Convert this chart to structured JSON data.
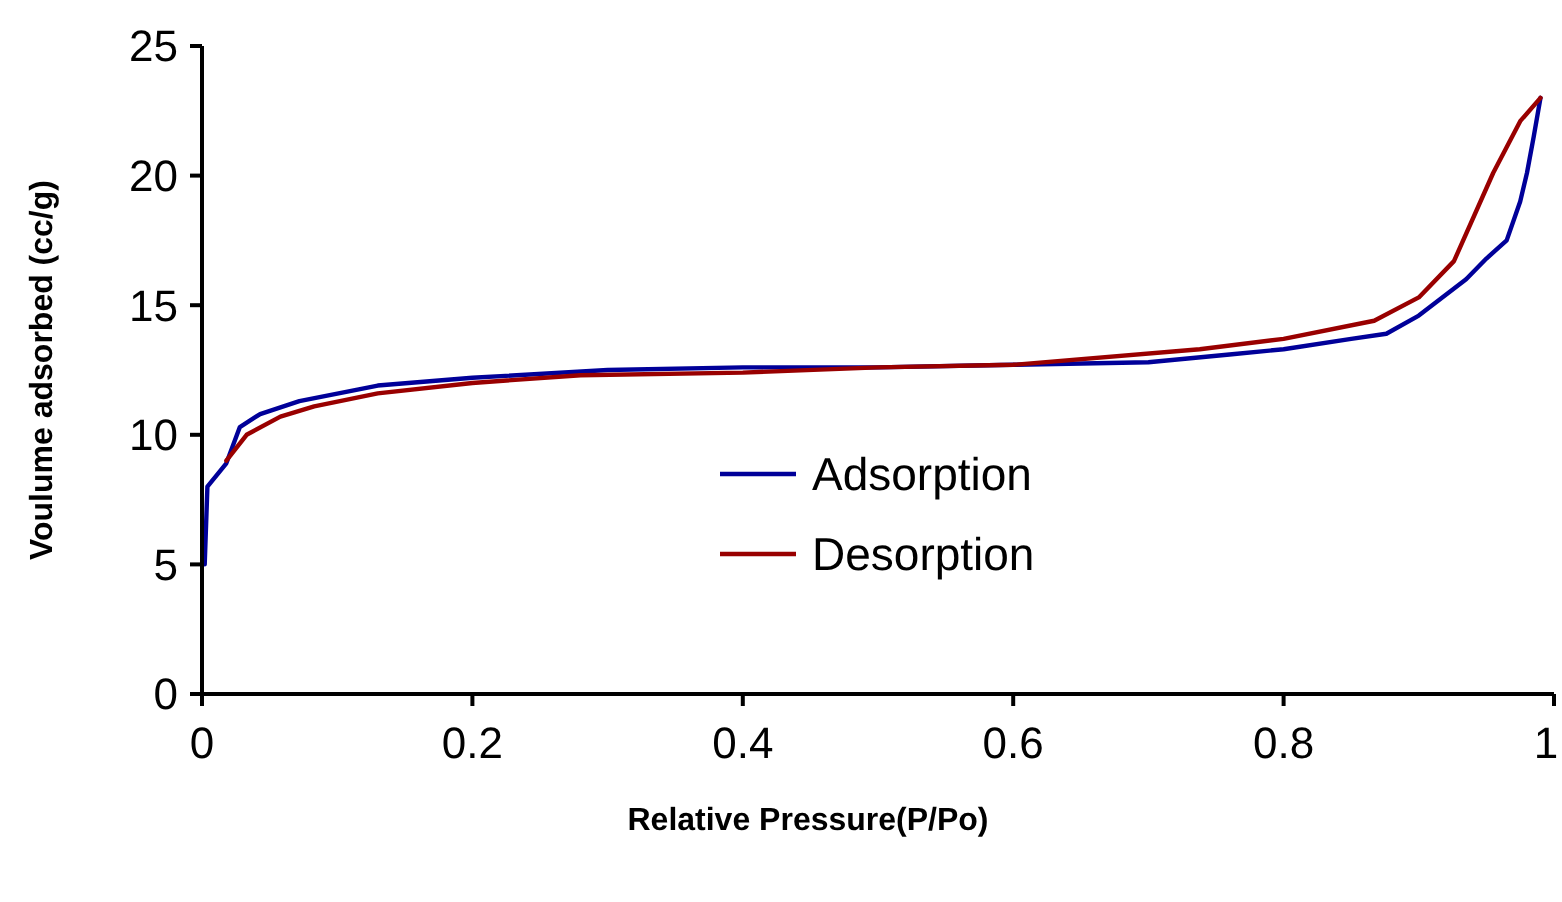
{
  "chart_data": {
    "type": "line",
    "xlabel": "Relative Pressure(P/Po)",
    "ylabel": "Voulume adsorbed (cc/g)",
    "xlim": [
      0,
      1
    ],
    "ylim": [
      0,
      25
    ],
    "xticks": [
      0,
      0.2,
      0.4,
      0.6,
      0.8,
      1
    ],
    "yticks": [
      0,
      5,
      10,
      15,
      20,
      25
    ],
    "grid": false,
    "legend": "center",
    "line_style": "solid",
    "series": [
      {
        "name": "Adsorption",
        "color": "#000099",
        "x": [
          0.002,
          0.004,
          0.018,
          0.028,
          0.043,
          0.072,
          0.13,
          0.2,
          0.3,
          0.4,
          0.5,
          0.6,
          0.7,
          0.76,
          0.8,
          0.85,
          0.876,
          0.9,
          0.935,
          0.95,
          0.965,
          0.975,
          0.98,
          0.985,
          0.99
        ],
        "values": [
          5.0,
          8.0,
          8.9,
          10.3,
          10.8,
          11.3,
          11.9,
          12.2,
          12.5,
          12.6,
          12.6,
          12.7,
          12.8,
          13.1,
          13.3,
          13.7,
          13.9,
          14.6,
          16.0,
          16.8,
          17.5,
          19.0,
          20.1,
          21.5,
          23.0
        ]
      },
      {
        "name": "Desorption",
        "color": "#990000",
        "x": [
          0.018,
          0.033,
          0.058,
          0.083,
          0.13,
          0.2,
          0.28,
          0.4,
          0.5,
          0.6,
          0.738,
          0.8,
          0.867,
          0.9,
          0.926,
          0.955,
          0.975,
          0.99
        ],
        "values": [
          9.0,
          10.0,
          10.7,
          11.1,
          11.6,
          12.0,
          12.3,
          12.4,
          12.6,
          12.7,
          13.3,
          13.7,
          14.4,
          15.3,
          16.7,
          20.1,
          22.1,
          23.0
        ]
      }
    ]
  }
}
